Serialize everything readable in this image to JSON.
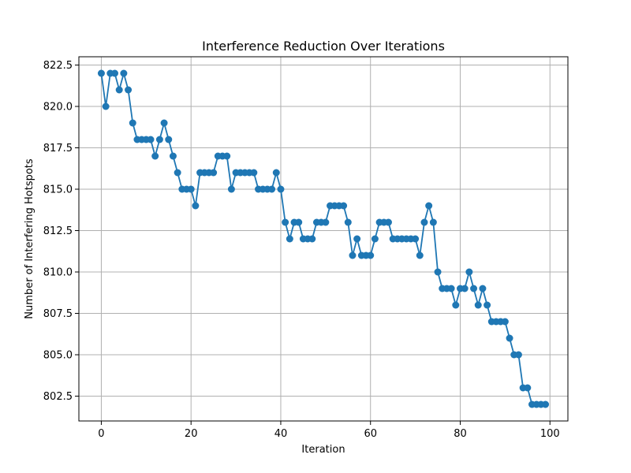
{
  "chart_data": {
    "type": "line",
    "title": "Interference Reduction Over Iterations",
    "xlabel": "Iteration",
    "ylabel": "Number of Interfering Hotspots",
    "xlim": [
      -5,
      104
    ],
    "ylim": [
      801.0,
      823.0
    ],
    "xticks": [
      0,
      20,
      40,
      60,
      80,
      100
    ],
    "xtick_labels": [
      "0",
      "20",
      "40",
      "60",
      "80",
      "100"
    ],
    "yticks": [
      802.5,
      805.0,
      807.5,
      810.0,
      812.5,
      815.0,
      817.5,
      820.0,
      822.5
    ],
    "ytick_labels": [
      "802.5",
      "805.0",
      "807.5",
      "810.0",
      "812.5",
      "815.0",
      "817.5",
      "820.0",
      "822.5"
    ],
    "grid": true,
    "marker": "circle",
    "series": [
      {
        "color": "#1f77b4",
        "x": [
          0,
          1,
          2,
          3,
          4,
          5,
          6,
          7,
          8,
          9,
          10,
          11,
          12,
          13,
          14,
          15,
          16,
          17,
          18,
          19,
          20,
          21,
          22,
          23,
          24,
          25,
          26,
          27,
          28,
          29,
          30,
          31,
          32,
          33,
          34,
          35,
          36,
          37,
          38,
          39,
          40,
          41,
          42,
          43,
          44,
          45,
          46,
          47,
          48,
          49,
          50,
          51,
          52,
          53,
          54,
          55,
          56,
          57,
          58,
          59,
          60,
          61,
          62,
          63,
          64,
          65,
          66,
          67,
          68,
          69,
          70,
          71,
          72,
          73,
          74,
          75,
          76,
          77,
          78,
          79,
          80,
          81,
          82,
          83,
          84,
          85,
          86,
          87,
          88,
          89,
          90,
          91,
          92,
          93,
          94,
          95,
          96,
          97,
          98,
          99
        ],
        "values": [
          822,
          820,
          822,
          822,
          821,
          822,
          821,
          819,
          818,
          818,
          818,
          818,
          817,
          818,
          819,
          818,
          817,
          816,
          815,
          815,
          815,
          814,
          816,
          816,
          816,
          816,
          817,
          817,
          817,
          815,
          816,
          816,
          816,
          816,
          816,
          815,
          815,
          815,
          815,
          816,
          815,
          813,
          812,
          813,
          813,
          812,
          812,
          812,
          813,
          813,
          813,
          814,
          814,
          814,
          814,
          813,
          811,
          812,
          811,
          811,
          811,
          812,
          813,
          813,
          813,
          812,
          812,
          812,
          812,
          812,
          812,
          811,
          813,
          814,
          813,
          810,
          809,
          809,
          809,
          808,
          809,
          809,
          810,
          809,
          808,
          809,
          808,
          807,
          807,
          807,
          807,
          806,
          805,
          805,
          803,
          803,
          802,
          802,
          802,
          802
        ]
      }
    ]
  }
}
